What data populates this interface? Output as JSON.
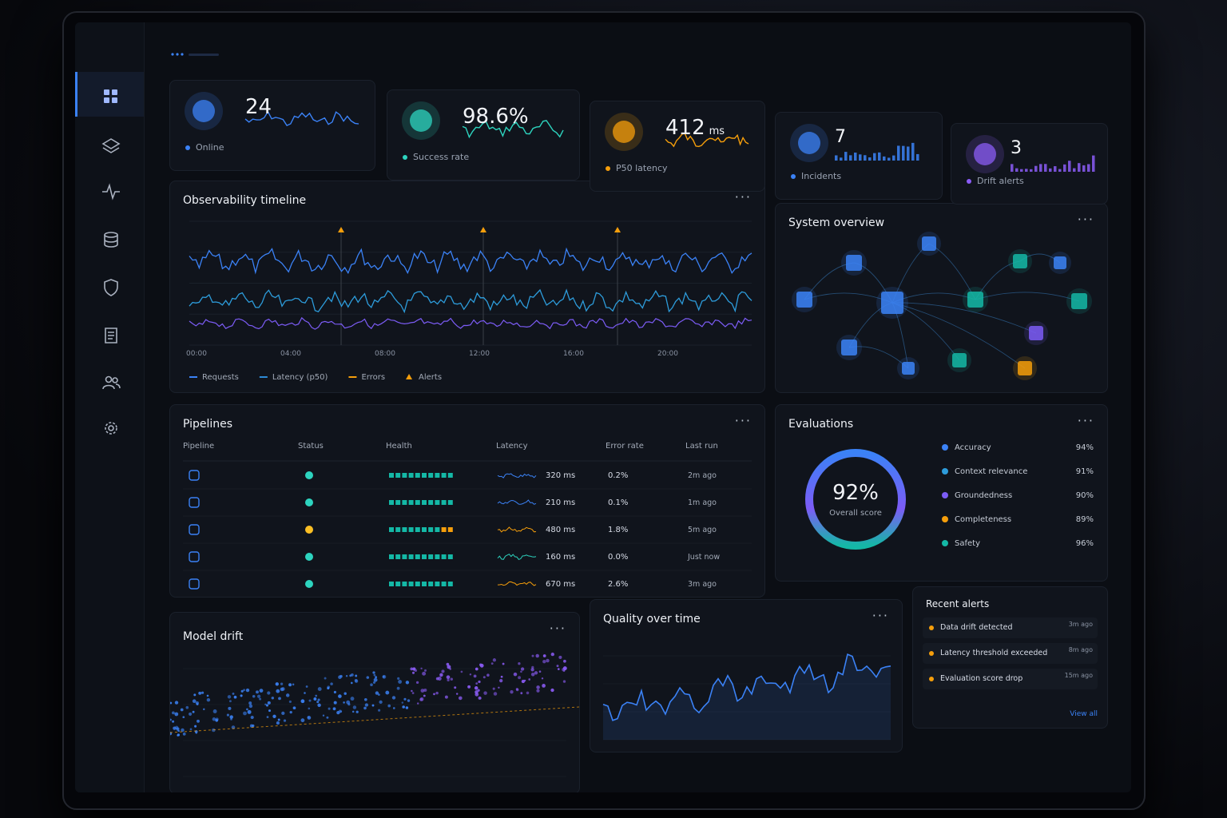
{
  "kpis": [
    {
      "value": "24",
      "label": "Online",
      "color": "#3b82f6"
    },
    {
      "value": "98.6%",
      "label": "Success rate",
      "color": "#2dd4bf"
    },
    {
      "value": "412",
      "unit": "ms",
      "label": "P50 latency",
      "color": "#f59e0b"
    },
    {
      "value": "7",
      "label": "Incidents",
      "color": "#3b82f6"
    },
    {
      "value": "3",
      "label": "Drift alerts",
      "color": "#8b5cf6"
    }
  ],
  "timeline": {
    "title": "Observability timeline",
    "x_labels": [
      "00:00",
      "04:00",
      "08:00",
      "12:00",
      "16:00",
      "20:00"
    ],
    "legend": [
      {
        "name": "Requests",
        "color": "#3b82f6"
      },
      {
        "name": "Latency (p50)",
        "color": "#2d8bd6"
      },
      {
        "name": "Errors",
        "color": "#f59e0b"
      },
      {
        "name": "Alerts",
        "color": "#f59e0b"
      }
    ]
  },
  "system_overview": {
    "title": "System overview"
  },
  "pipelines": {
    "title": "Pipelines",
    "columns": [
      "Pipeline",
      "Status",
      "Health",
      "Latency",
      "Error rate",
      "Last run"
    ],
    "rows": [
      {
        "status_color": "#2dd4bf",
        "latency": "320 ms",
        "error_rate": "0.2%",
        "last_run": "2m ago",
        "line_color": "#3b82f6"
      },
      {
        "status_color": "#2dd4bf",
        "latency": "210 ms",
        "error_rate": "0.1%",
        "last_run": "1m ago",
        "line_color": "#3b82f6"
      },
      {
        "status_color": "#fbbf24",
        "latency": "480 ms",
        "error_rate": "1.8%",
        "last_run": "5m ago",
        "line_color": "#f59e0b"
      },
      {
        "status_color": "#2dd4bf",
        "latency": "160 ms",
        "error_rate": "0.0%",
        "last_run": "Just now",
        "line_color": "#2dd4bf"
      },
      {
        "status_color": "#2dd4bf",
        "latency": "670 ms",
        "error_rate": "2.6%",
        "last_run": "3m ago",
        "line_color": "#f59e0b"
      }
    ]
  },
  "evaluations": {
    "title": "Evaluations",
    "score": "92%",
    "score_label": "Overall score",
    "metrics": [
      {
        "name": "Accuracy",
        "value": "94%",
        "color": "#3b82f6"
      },
      {
        "name": "Context relevance",
        "value": "91%",
        "color": "#2d9cdb"
      },
      {
        "name": "Groundedness",
        "value": "90%",
        "color": "#7c5cf6"
      },
      {
        "name": "Completeness",
        "value": "89%",
        "color": "#f59e0b"
      },
      {
        "name": "Safety",
        "value": "96%",
        "color": "#14b8a6"
      }
    ]
  },
  "model_drift": {
    "title": "Model drift"
  },
  "quality": {
    "title": "Quality over time"
  },
  "alerts": {
    "title": "Recent alerts",
    "items": [
      {
        "text": "Data drift detected",
        "time": "3m ago",
        "color": "#f59e0b"
      },
      {
        "text": "Latency threshold exceeded",
        "time": "8m ago",
        "color": "#f59e0b"
      },
      {
        "text": "Evaluation score drop",
        "time": "15m ago",
        "color": "#f59e0b"
      }
    ],
    "link": "View all"
  }
}
